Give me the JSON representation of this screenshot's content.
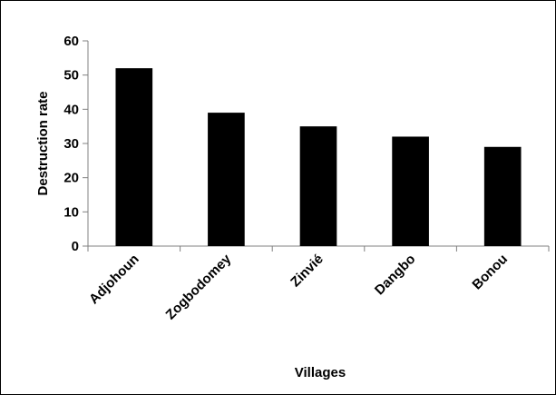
{
  "chart_data": {
    "type": "bar",
    "categories": [
      "Adjohoun",
      "Zogbodomey",
      "Zinvié",
      "Dangbo",
      "Bonou"
    ],
    "values": [
      52,
      39,
      35,
      32,
      29
    ],
    "title": "",
    "xlabel": "Villages",
    "ylabel": "Destruction rate",
    "ylim": [
      0,
      60
    ],
    "yticks": [
      0,
      10,
      20,
      30,
      40,
      50,
      60
    ],
    "grid": false,
    "legend": "none",
    "bar_color": "#000000",
    "axis_color": "#808080"
  }
}
